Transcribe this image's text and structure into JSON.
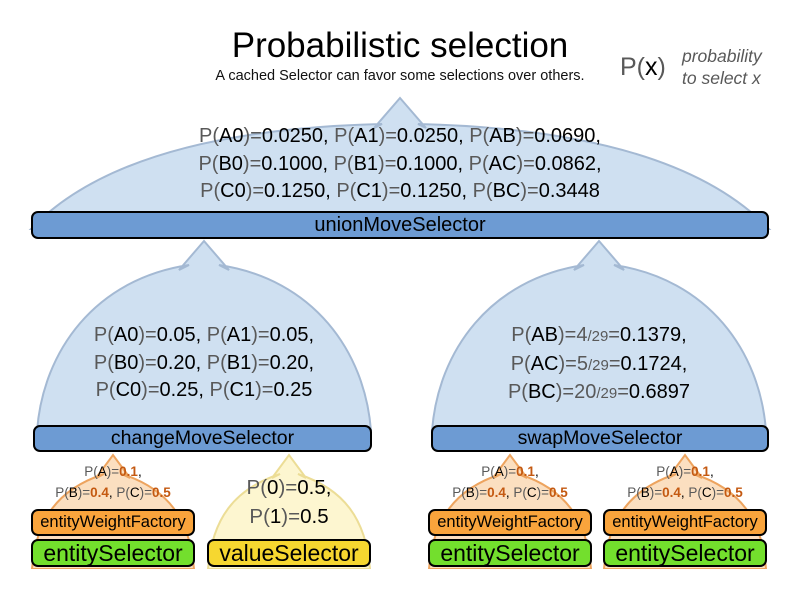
{
  "title": "Probabilistic selection",
  "subtitle": "A cached Selector can favor some selections over others.",
  "legend": {
    "symbol_segments": [
      {
        "t": "P(",
        "s": "dim"
      },
      {
        "t": "x",
        "s": "dark"
      },
      {
        "t": ")",
        "s": "dim"
      }
    ],
    "description_line1": "probability",
    "description_line2": "to select x"
  },
  "colors": {
    "dome_blue_fill": "#cfe0f1",
    "dome_blue_stroke": "#a4b9d3",
    "dome_orange_fill": "#fbdfc0",
    "dome_orange_stroke": "#eda45f",
    "dome_yellow_fill": "#fdf6d0",
    "bar_blue": "#6d9bd3",
    "box_orange": "#f9a43c",
    "box_green": "#73df2d",
    "box_yellow": "#f6d730",
    "text_gray": "#595959",
    "text_orange_bold": "#c45911"
  },
  "union": {
    "label": "unionMoveSelector",
    "dome_lines": [
      [
        {
          "t": "P(",
          "s": "dim"
        },
        {
          "t": "A0",
          "s": "dark"
        },
        {
          "t": ")=",
          "s": "dim"
        },
        {
          "t": "0.0250, ",
          "s": "dark"
        },
        {
          "t": "P(",
          "s": "dim"
        },
        {
          "t": "A1",
          "s": "dark"
        },
        {
          "t": ")=",
          "s": "dim"
        },
        {
          "t": "0.0250, ",
          "s": "dark"
        },
        {
          "t": "P(",
          "s": "dim"
        },
        {
          "t": "AB",
          "s": "dark"
        },
        {
          "t": ")=",
          "s": "dim"
        },
        {
          "t": "0.0690,",
          "s": "dark"
        }
      ],
      [
        {
          "t": "P(",
          "s": "dim"
        },
        {
          "t": "B0",
          "s": "dark"
        },
        {
          "t": ")=",
          "s": "dim"
        },
        {
          "t": "0.1000, ",
          "s": "dark"
        },
        {
          "t": "P(",
          "s": "dim"
        },
        {
          "t": "B1",
          "s": "dark"
        },
        {
          "t": ")=",
          "s": "dim"
        },
        {
          "t": "0.1000, ",
          "s": "dark"
        },
        {
          "t": "P(",
          "s": "dim"
        },
        {
          "t": "AC",
          "s": "dark"
        },
        {
          "t": ")=",
          "s": "dim"
        },
        {
          "t": "0.0862,",
          "s": "dark"
        }
      ],
      [
        {
          "t": "P(",
          "s": "dim"
        },
        {
          "t": "C0",
          "s": "dark"
        },
        {
          "t": ")=",
          "s": "dim"
        },
        {
          "t": "0.1250, ",
          "s": "dark"
        },
        {
          "t": "P(",
          "s": "dim"
        },
        {
          "t": "C1",
          "s": "dark"
        },
        {
          "t": ")=",
          "s": "dim"
        },
        {
          "t": "0.1250, ",
          "s": "dark"
        },
        {
          "t": "P(",
          "s": "dim"
        },
        {
          "t": "BC",
          "s": "dark"
        },
        {
          "t": ")=",
          "s": "dim"
        },
        {
          "t": "0.3448",
          "s": "dark"
        }
      ]
    ]
  },
  "change": {
    "label": "changeMoveSelector",
    "dome_lines": [
      [
        {
          "t": "P(",
          "s": "dim"
        },
        {
          "t": "A0",
          "s": "dark"
        },
        {
          "t": ")=",
          "s": "dim"
        },
        {
          "t": "0.05, ",
          "s": "dark"
        },
        {
          "t": "P(",
          "s": "dim"
        },
        {
          "t": "A1",
          "s": "dark"
        },
        {
          "t": ")=",
          "s": "dim"
        },
        {
          "t": "0.05,",
          "s": "dark"
        }
      ],
      [
        {
          "t": "P(",
          "s": "dim"
        },
        {
          "t": "B0",
          "s": "dark"
        },
        {
          "t": ")=",
          "s": "dim"
        },
        {
          "t": "0.20, ",
          "s": "dark"
        },
        {
          "t": "P(",
          "s": "dim"
        },
        {
          "t": "B1",
          "s": "dark"
        },
        {
          "t": ")=",
          "s": "dim"
        },
        {
          "t": "0.20,",
          "s": "dark"
        }
      ],
      [
        {
          "t": "P(",
          "s": "dim"
        },
        {
          "t": "C0",
          "s": "dark"
        },
        {
          "t": ")=",
          "s": "dim"
        },
        {
          "t": "0.25, ",
          "s": "dark"
        },
        {
          "t": "P(",
          "s": "dim"
        },
        {
          "t": "C1",
          "s": "dark"
        },
        {
          "t": ")=",
          "s": "dim"
        },
        {
          "t": "0.25",
          "s": "dark"
        }
      ]
    ]
  },
  "swap": {
    "label": "swapMoveSelector",
    "dome_lines": [
      [
        {
          "t": "P(",
          "s": "dim"
        },
        {
          "t": "AB",
          "s": "dark"
        },
        {
          "t": ")=",
          "s": "dim"
        },
        {
          "t": "4",
          "s": "dim"
        },
        {
          "t": "/29",
          "s": "frac"
        },
        {
          "t": "=",
          "s": "dim"
        },
        {
          "t": "0.1379,",
          "s": "dark"
        }
      ],
      [
        {
          "t": "P(",
          "s": "dim"
        },
        {
          "t": "AC",
          "s": "dark"
        },
        {
          "t": ")=",
          "s": "dim"
        },
        {
          "t": "5",
          "s": "dim"
        },
        {
          "t": "/29",
          "s": "frac"
        },
        {
          "t": "=",
          "s": "dim"
        },
        {
          "t": "0.1724,",
          "s": "dark"
        }
      ],
      [
        {
          "t": "P(",
          "s": "dim"
        },
        {
          "t": "BC",
          "s": "dark"
        },
        {
          "t": ")=",
          "s": "dim"
        },
        {
          "t": "20",
          "s": "dim"
        },
        {
          "t": "/29",
          "s": "frac"
        },
        {
          "t": "=",
          "s": "dim"
        },
        {
          "t": "0.6897",
          "s": "dark"
        }
      ]
    ]
  },
  "value_group": {
    "box_label": "valueSelector",
    "dome_lines": [
      [
        {
          "t": "P(",
          "s": "dim"
        },
        {
          "t": "0",
          "s": "dark"
        },
        {
          "t": ")=",
          "s": "dim"
        },
        {
          "t": "0.5,",
          "s": "dark"
        }
      ],
      [
        {
          "t": "P(",
          "s": "dim"
        },
        {
          "t": "1",
          "s": "dark"
        },
        {
          "t": ")=",
          "s": "dim"
        },
        {
          "t": "0.5",
          "s": "dark"
        }
      ]
    ]
  },
  "entity_groups": [
    {
      "factory_label": "entityWeightFactory",
      "selector_label": "entitySelector",
      "dome_lines": [
        [
          {
            "t": "P(",
            "s": "dim"
          },
          {
            "t": "A",
            "s": "dark"
          },
          {
            "t": ")=",
            "s": "dim"
          },
          {
            "t": "0.1",
            "s": "orange"
          },
          {
            "t": ",",
            "s": "dark"
          }
        ],
        [
          {
            "t": "P(",
            "s": "dim"
          },
          {
            "t": "B",
            "s": "dark"
          },
          {
            "t": ")=",
            "s": "dim"
          },
          {
            "t": "0.4",
            "s": "orange"
          },
          {
            "t": ", ",
            "s": "dark"
          },
          {
            "t": "P(",
            "s": "dim"
          },
          {
            "t": "C",
            "s": "dark"
          },
          {
            "t": ")=",
            "s": "dim"
          },
          {
            "t": "0.5",
            "s": "orange"
          }
        ]
      ]
    },
    {
      "factory_label": "entityWeightFactory",
      "selector_label": "entitySelector",
      "dome_lines": [
        [
          {
            "t": "P(",
            "s": "dim"
          },
          {
            "t": "A",
            "s": "dark"
          },
          {
            "t": ")=",
            "s": "dim"
          },
          {
            "t": "0.1",
            "s": "orange"
          },
          {
            "t": ",",
            "s": "dark"
          }
        ],
        [
          {
            "t": "P(",
            "s": "dim"
          },
          {
            "t": "B",
            "s": "dark"
          },
          {
            "t": ")=",
            "s": "dim"
          },
          {
            "t": "0.4",
            "s": "orange"
          },
          {
            "t": ", ",
            "s": "dark"
          },
          {
            "t": "P(",
            "s": "dim"
          },
          {
            "t": "C",
            "s": "dark"
          },
          {
            "t": ")=",
            "s": "dim"
          },
          {
            "t": "0.5",
            "s": "orange"
          }
        ]
      ]
    },
    {
      "factory_label": "entityWeightFactory",
      "selector_label": "entitySelector",
      "dome_lines": [
        [
          {
            "t": "P(",
            "s": "dim"
          },
          {
            "t": "A",
            "s": "dark"
          },
          {
            "t": ")=",
            "s": "dim"
          },
          {
            "t": "0.1",
            "s": "orange"
          },
          {
            "t": ",",
            "s": "dark"
          }
        ],
        [
          {
            "t": "P(",
            "s": "dim"
          },
          {
            "t": "B",
            "s": "dark"
          },
          {
            "t": ")=",
            "s": "dim"
          },
          {
            "t": "0.4",
            "s": "orange"
          },
          {
            "t": ", ",
            "s": "dark"
          },
          {
            "t": "P(",
            "s": "dim"
          },
          {
            "t": "C",
            "s": "dark"
          },
          {
            "t": ")=",
            "s": "dim"
          },
          {
            "t": "0.5",
            "s": "orange"
          }
        ]
      ]
    }
  ]
}
